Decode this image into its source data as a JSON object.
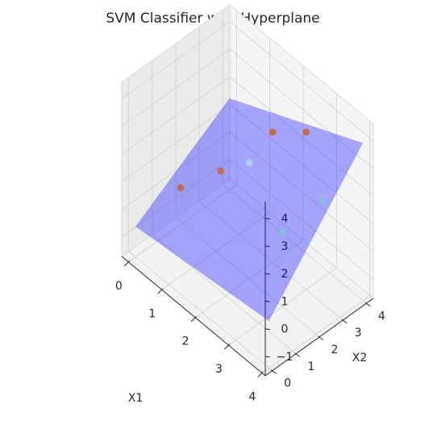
{
  "chart_data": {
    "type": "scatter",
    "projection": "3d",
    "title": "SVM Classifier with Hyperplane",
    "xlabel": "X1",
    "ylabel": "X2",
    "zlabel": "",
    "xlim": [
      -0.2,
      4.1
    ],
    "ylim": [
      -0.3,
      4.3
    ],
    "zlim": [
      -1.7,
      4.6
    ],
    "xticks": [
      "0",
      "1",
      "2",
      "3",
      "4"
    ],
    "yticks": [
      "0",
      "1",
      "2",
      "3",
      "4"
    ],
    "zticks": [
      "−1",
      "0",
      "1",
      "2",
      "3",
      "4"
    ],
    "grid": true,
    "hyperplane": {
      "color": "#0000ff",
      "opacity": 0.33,
      "corners": [
        {
          "x": 0.0,
          "y": 0.0,
          "z": -0.6
        },
        {
          "x": 4.0,
          "y": 0.0,
          "z": 0.0
        },
        {
          "x": 4.0,
          "y": 4.0,
          "z": 4.0
        },
        {
          "x": 0.0,
          "y": 4.0,
          "z": 1.6
        }
      ]
    },
    "points": [
      {
        "x": 1.0,
        "y": 0.5,
        "z": 1.5,
        "class": 1,
        "color": "#c0693a"
      },
      {
        "x": 1.5,
        "y": 1.5,
        "z": 2.0,
        "class": 1,
        "color": "#c0693a"
      },
      {
        "x": 2.0,
        "y": 3.0,
        "z": 3.0,
        "class": 1,
        "color": "#c0693a"
      },
      {
        "x": 3.0,
        "y": 3.0,
        "z": 4.0,
        "class": 1,
        "color": "#c0693a"
      },
      {
        "x": 2.0,
        "y": 2.0,
        "z": 2.5,
        "class": 0,
        "color": "#a6d9ec"
      },
      {
        "x": 3.0,
        "y": 2.0,
        "z": 1.0,
        "class": 0,
        "color": "#7ec4e0"
      },
      {
        "x": 3.5,
        "y": 3.0,
        "z": 2.0,
        "class": 0,
        "color": "#7ec4e0"
      }
    ]
  }
}
